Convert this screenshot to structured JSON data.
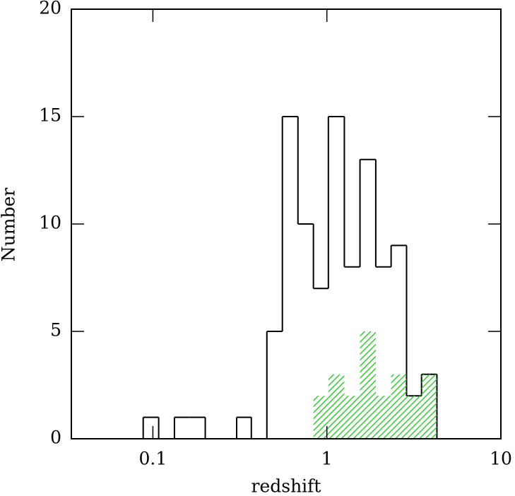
{
  "chart_data": {
    "type": "histogram",
    "xlabel": "redshift",
    "ylabel": "Number",
    "bins": [
      0.088,
      0.108,
      0.133,
      0.163,
      0.2,
      0.246,
      0.303,
      0.368,
      0.452,
      0.555,
      0.682,
      0.837,
      1.02,
      1.26,
      1.55,
      1.91,
      2.34,
      2.87,
      3.5,
      4.29
    ],
    "series": [
      {
        "color": "#000000",
        "style": "outline",
        "values": [
          1,
          0,
          1,
          1,
          0,
          0,
          1,
          0,
          5,
          15,
          10,
          7,
          15,
          8,
          13,
          8,
          9,
          2,
          3
        ]
      },
      {
        "color": "#33cc33",
        "style": "hatched",
        "values": [
          0,
          0,
          0,
          0,
          0,
          0,
          0,
          0,
          0,
          0,
          0,
          2,
          3,
          2,
          5,
          2,
          3,
          2,
          3
        ]
      }
    ],
    "xscale": "log",
    "xlim": [
      0.034,
      10
    ],
    "xticks": [
      0.1,
      1,
      10
    ],
    "ylim": [
      0,
      20
    ],
    "yticks": [
      0,
      5,
      10,
      15,
      20
    ]
  }
}
